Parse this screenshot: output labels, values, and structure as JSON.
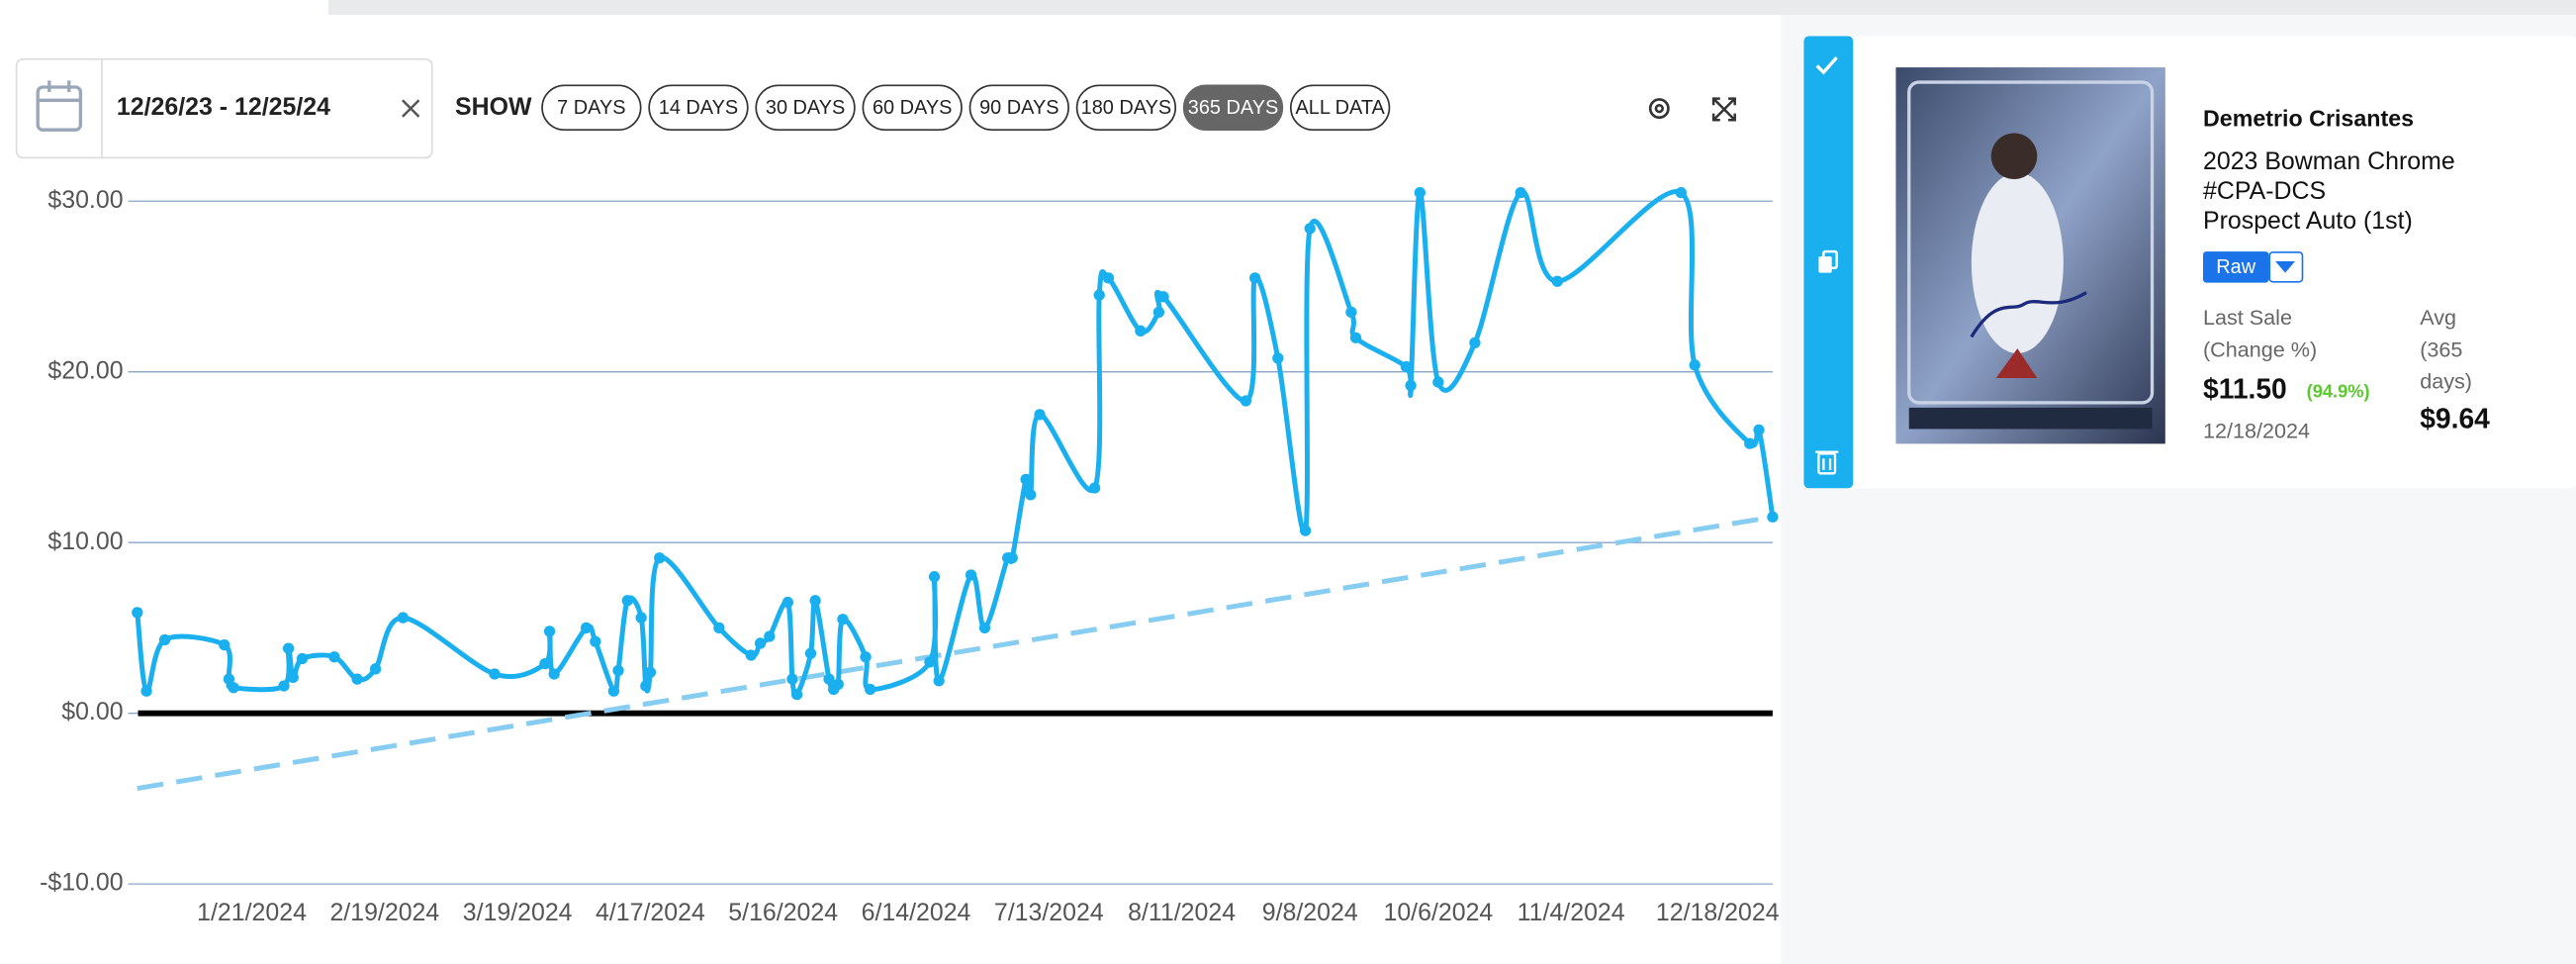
{
  "date_range": "12/26/23 - 12/25/24",
  "show_label": "SHOW",
  "range_buttons": [
    {
      "label": "7 DAYS",
      "active": false
    },
    {
      "label": "14 DAYS",
      "active": false
    },
    {
      "label": "30 DAYS",
      "active": false
    },
    {
      "label": "60 DAYS",
      "active": false
    },
    {
      "label": "90 DAYS",
      "active": false
    },
    {
      "label": "180 DAYS",
      "active": false
    },
    {
      "label": "365 DAYS",
      "active": true
    },
    {
      "label": "ALL DATA",
      "active": false
    }
  ],
  "chart_data": {
    "type": "line",
    "x": [
      "12/27/2023",
      "12/29/2023",
      "1/2/2024",
      "1/15/2024",
      "1/16/2024",
      "1/17/2024",
      "1/28/2024",
      "1/29/2024",
      "1/30/2024",
      "2/1/2024",
      "2/8/2024",
      "2/13/2024",
      "2/17/2024",
      "2/23/2024",
      "3/14/2024",
      "3/25/2024",
      "3/26/2024",
      "3/27/2024",
      "4/3/2024",
      "4/5/2024",
      "4/9/2024",
      "4/10/2024",
      "4/12/2024",
      "4/15/2024",
      "4/16/2024",
      "4/17/2024",
      "4/19/2024",
      "5/2/2024",
      "5/9/2024",
      "5/11/2024",
      "5/13/2024",
      "5/17/2024",
      "5/18/2024",
      "5/19/2024",
      "5/22/2024",
      "5/23/2024",
      "5/26/2024",
      "5/27/2024",
      "5/28/2024",
      "5/29/2024",
      "6/3/2024",
      "6/4/2024",
      "6/17/2024",
      "6/18/2024",
      "6/19/2024",
      "6/26/2024",
      "6/29/2024",
      "7/4/2024",
      "7/5/2024",
      "7/8/2024",
      "7/9/2024",
      "7/11/2024",
      "7/23/2024",
      "7/24/2024",
      "7/26/2024",
      "8/2/2024",
      "8/6/2024",
      "8/7/2024",
      "8/25/2024",
      "8/27/2024",
      "9/1/2024",
      "9/7/2024",
      "9/8/2024",
      "9/17/2024",
      "9/18/2024",
      "9/29/2024",
      "9/30/2024",
      "10/2/2024",
      "10/6/2024",
      "10/14/2024",
      "10/24/2024",
      "11/1/2024",
      "11/28/2024",
      "12/1/2024",
      "12/13/2024",
      "12/15/2024",
      "12/18/2024"
    ],
    "series": [
      {
        "color": "#1ab0ef",
        "values": [
          5.9,
          1.3,
          4.3,
          4.0,
          2.0,
          1.5,
          1.6,
          3.8,
          2.1,
          3.2,
          3.3,
          2.0,
          2.6,
          5.6,
          2.3,
          2.9,
          4.8,
          2.3,
          5.0,
          4.2,
          1.3,
          2.5,
          6.6,
          5.6,
          1.6,
          2.4,
          9.1,
          5.0,
          3.4,
          4.1,
          4.5,
          6.5,
          2.0,
          1.1,
          3.5,
          6.6,
          2.0,
          1.4,
          1.7,
          5.5,
          3.3,
          1.4,
          3.0,
          8.0,
          1.9,
          8.1,
          5.0,
          9.1,
          9.1,
          13.7,
          12.8,
          17.5,
          13.2,
          24.5,
          25.5,
          22.4,
          23.5,
          24.4,
          18.3,
          25.5,
          20.8,
          10.7,
          28.4,
          23.5,
          22.0,
          20.3,
          19.2,
          30.5,
          19.4,
          21.7,
          30.5,
          25.3,
          30.5,
          20.4,
          15.8,
          16.6,
          11.5
        ]
      }
    ],
    "trendline": {
      "x": [
        "12/27/2023",
        "12/18/2024"
      ],
      "values": [
        -4.4,
        11.5
      ],
      "color": "#87cdf2",
      "dashed": true
    },
    "xlim": [
      "12/25/2023",
      "12/18/2024"
    ],
    "xticks": [
      "1/21/2024",
      "2/19/2024",
      "3/19/2024",
      "4/17/2024",
      "5/16/2024",
      "6/14/2024",
      "7/13/2024",
      "8/11/2024",
      "9/8/2024",
      "10/6/2024",
      "11/4/2024",
      "12/18/2024"
    ],
    "ylim": [
      -10.5,
      31
    ],
    "yticks": [
      {
        "value": -10,
        "label": "-$10.00"
      },
      {
        "value": 0,
        "label": "$0.00"
      },
      {
        "value": 10,
        "label": "$10.00"
      },
      {
        "value": 20,
        "label": "$20.00"
      },
      {
        "value": 30,
        "label": "$30.00"
      }
    ],
    "grid": true
  },
  "card": {
    "name": "Demetrio Crisantes",
    "set_lines": [
      "2023 Bowman Chrome",
      "#CPA-DCS",
      "Prospect Auto (1st)"
    ],
    "grade": "Raw",
    "last_sale": {
      "label_lines": [
        "Last Sale",
        "(Change %)"
      ],
      "price": "$11.50",
      "change": "(94.9%)",
      "date": "12/18/2024"
    },
    "average": {
      "label_lines": [
        "Avg",
        "(365",
        "days)"
      ],
      "price": "$9.64"
    }
  }
}
